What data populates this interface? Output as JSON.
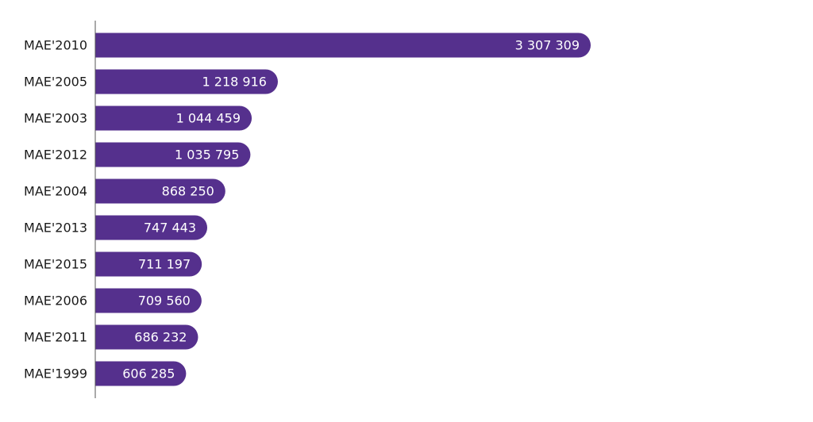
{
  "chart_data": {
    "type": "bar",
    "orientation": "horizontal",
    "categories": [
      "MAE'2010",
      "MAE'2005",
      "MAE'2003",
      "MAE'2012",
      "MAE'2004",
      "MAE'2013",
      "MAE'2015",
      "MAE'2006",
      "MAE'2011",
      "MAE'1999"
    ],
    "values": [
      3307309,
      1218916,
      1044459,
      1035795,
      868250,
      747443,
      711197,
      709560,
      686232,
      606285
    ],
    "value_labels": [
      "3 307 309",
      "1 218 916",
      "1 044 459",
      "1 035 795",
      "868 250",
      "747 443",
      "711 197",
      "709 560",
      "686 232",
      "606 285"
    ],
    "title": "",
    "xlabel": "",
    "ylabel": "",
    "xlim": [
      0,
      3307309
    ],
    "grid": false,
    "legend": "none",
    "bar_color": "#55308d",
    "axis_color": "#555555"
  }
}
